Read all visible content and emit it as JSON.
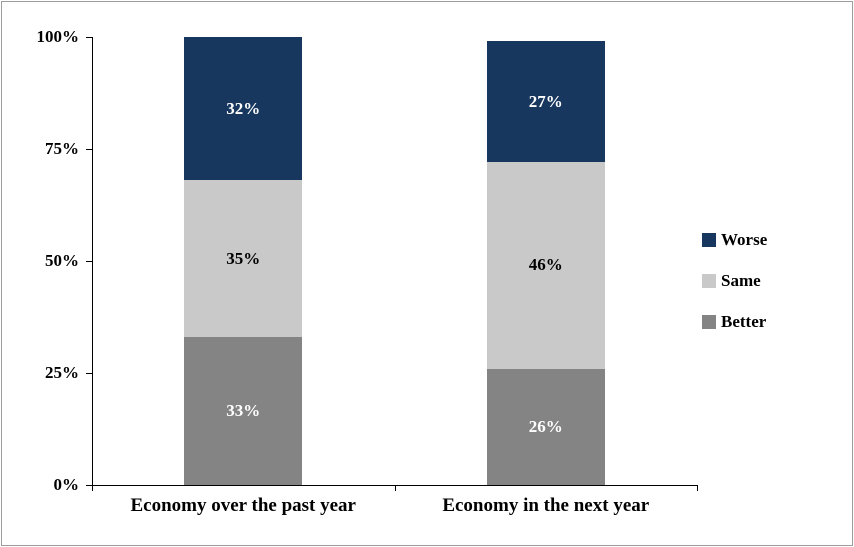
{
  "chart_data": {
    "type": "bar",
    "subtype": "stacked",
    "title": "",
    "categories": [
      "Economy over the past year",
      "Economy in the next year"
    ],
    "series": [
      {
        "name": "Better",
        "values": [
          33,
          26
        ],
        "color": "#848484",
        "label_color": "#ffffff"
      },
      {
        "name": "Same",
        "values": [
          35,
          46
        ],
        "color": "#c9c9c9",
        "label_color": "#000000"
      },
      {
        "name": "Worse",
        "values": [
          32,
          27
        ],
        "color": "#17375e",
        "label_color": "#ffffff"
      }
    ],
    "value_label_suffix": "%",
    "y_ticks": [
      {
        "label": "0%",
        "value": 0
      },
      {
        "label": "25%",
        "value": 25
      },
      {
        "label": "50%",
        "value": 50
      },
      {
        "label": "75%",
        "value": 75
      },
      {
        "label": "100%",
        "value": 100
      }
    ],
    "ylim": [
      0,
      100
    ],
    "grid": false,
    "legend": {
      "position": "right",
      "items": [
        "Worse",
        "Same",
        "Better"
      ]
    }
  },
  "colors": {
    "axis": "#000000",
    "frame_border": "#9d9d9d",
    "background": "#ffffff"
  }
}
